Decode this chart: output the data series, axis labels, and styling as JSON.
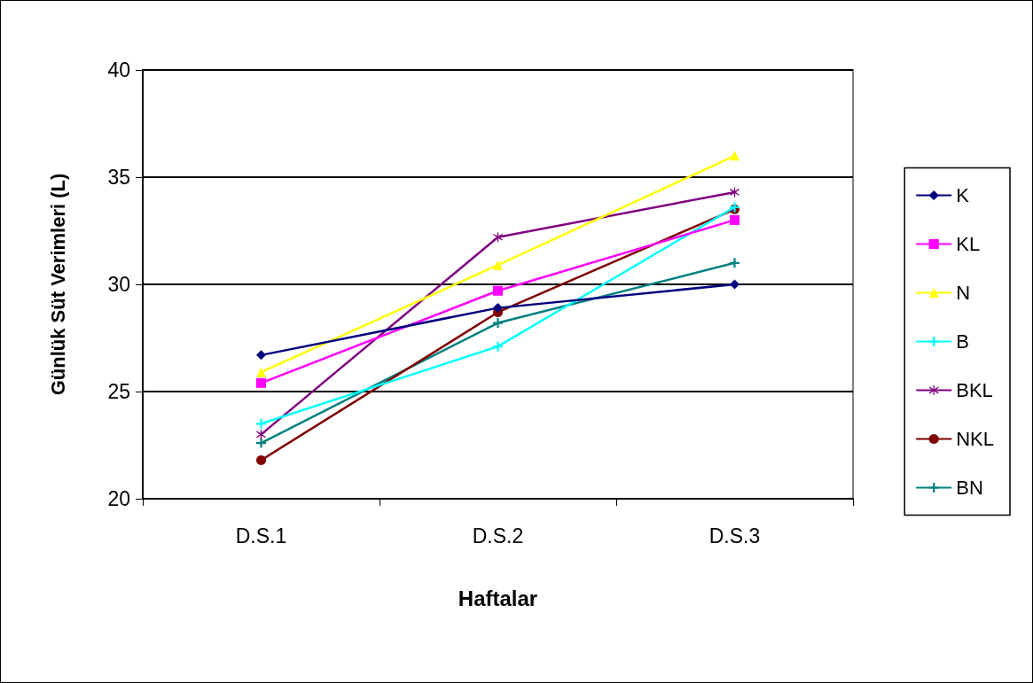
{
  "chart_data": {
    "type": "line",
    "xlabel": "Haftalar",
    "ylabel": "Günlük Süt Verimleri (L)",
    "categories": [
      "D.S.1",
      "D.S.2",
      "D.S.3"
    ],
    "ylim": [
      20,
      40
    ],
    "yticks": [
      20,
      25,
      30,
      35,
      40
    ],
    "grid": "y",
    "legend": "right",
    "series": [
      {
        "name": "K",
        "color": "#000080",
        "marker": "diamond",
        "values": [
          26.7,
          28.9,
          30.0
        ]
      },
      {
        "name": "KL",
        "color": "#ff00ff",
        "marker": "square",
        "values": [
          25.4,
          29.7,
          33.0
        ]
      },
      {
        "name": "N",
        "color": "#ffff00",
        "marker": "triangle",
        "values": [
          25.9,
          30.9,
          36.0
        ]
      },
      {
        "name": "B",
        "color": "#00ffff",
        "marker": "cross",
        "values": [
          23.5,
          27.1,
          33.6
        ]
      },
      {
        "name": "BKL",
        "color": "#800080",
        "marker": "star",
        "values": [
          23.0,
          32.2,
          34.3
        ]
      },
      {
        "name": "NKL",
        "color": "#800000",
        "marker": "circle",
        "values": [
          21.8,
          28.7,
          33.5
        ]
      },
      {
        "name": "BN",
        "color": "#008080",
        "marker": "cross",
        "values": [
          22.6,
          28.2,
          31.0
        ]
      }
    ]
  }
}
